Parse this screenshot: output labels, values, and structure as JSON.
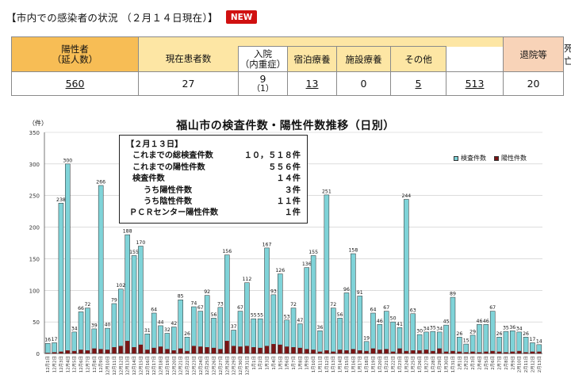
{
  "header": {
    "title": "【市内での感染者の状況 （２月１４日現在）】",
    "badge": "NEW"
  },
  "status_table": {
    "headers": {
      "positive": [
        "陽性者",
        "（延人数）"
      ],
      "current_patients": "現在患者数",
      "hospitalized": [
        "入院",
        "（内重症）"
      ],
      "hotel": "宿泊療養",
      "facility": "施設療養",
      "other": "その他",
      "discharged": "退院等",
      "deaths": "死亡"
    },
    "values": {
      "positive": "560",
      "current_patients": "27",
      "hospitalized": "9",
      "hospitalized_severe": "（1）",
      "hotel": "13",
      "facility": "0",
      "other": "5",
      "discharged": "513",
      "deaths": "20"
    },
    "colors": {
      "positive_header": "#f7bd55",
      "status_header": "#fde6a4",
      "discharged_header": "#f8d3b8",
      "deaths_header": "#d6e0f6"
    }
  },
  "chart_title": "福山市の検査件数・陽性件数推移（日別）",
  "info_box": {
    "heading": "【２月１３日】",
    "rows": [
      {
        "label": "これまでの総検査件数",
        "value": "１０，５１８件",
        "indent": 1
      },
      {
        "label": "これまでの陽性件数",
        "value": "５５６件",
        "indent": 1
      },
      {
        "label": "検査件数",
        "value": "１４件",
        "indent": 1
      },
      {
        "label": "うち陽性件数",
        "value": "３件",
        "indent": 2
      },
      {
        "label": "うち陰性件数",
        "value": "１１件",
        "indent": 2
      },
      {
        "label": "ＰＣＲセンター陽性件数",
        "value": "１件",
        "indent": 0
      }
    ]
  },
  "chart_data": {
    "type": "bar",
    "yunit": "（件）",
    "ylim": [
      0,
      350
    ],
    "yticks": [
      0,
      50,
      100,
      150,
      200,
      250,
      300,
      350
    ],
    "grid": true,
    "legend_placement": "top-right",
    "series": [
      {
        "name": "検査件数",
        "color": "#7fd3d8",
        "values": [
          16,
          17,
          238,
          300,
          34,
          66,
          72,
          39,
          266,
          40,
          79,
          102,
          188,
          155,
          170,
          31,
          64,
          44,
          32,
          42,
          85,
          26,
          74,
          67,
          92,
          56,
          73,
          156,
          37,
          67,
          112,
          55,
          55,
          167,
          93,
          126,
          53,
          72,
          47,
          136,
          155,
          36,
          251,
          72,
          56,
          96,
          158,
          91,
          19,
          64,
          46,
          67,
          50,
          41,
          244,
          63,
          30,
          34,
          35,
          34,
          45,
          89,
          26,
          15,
          29,
          46,
          46,
          67,
          26,
          35,
          36,
          34,
          26,
          17,
          14
        ],
        "labels": [
          16,
          17,
          238,
          300,
          34,
          66,
          72,
          39,
          266,
          40,
          79,
          102,
          188,
          155,
          170,
          31,
          64,
          44,
          32,
          42,
          85,
          26,
          74,
          67,
          92,
          56,
          73,
          156,
          37,
          67,
          112,
          55,
          55,
          167,
          93,
          126,
          53,
          72,
          47,
          136,
          155,
          36,
          251,
          72,
          56,
          96,
          158,
          91,
          19,
          64,
          46,
          67,
          50,
          41,
          244,
          63,
          30,
          34,
          35,
          34,
          45,
          89,
          26,
          15,
          29,
          46,
          46,
          67,
          26,
          35,
          36,
          34,
          26,
          17,
          14
        ]
      },
      {
        "name": "陽性件数",
        "color": "#7a1414",
        "values": [
          1,
          2,
          3,
          5,
          4,
          6,
          5,
          8,
          7,
          6,
          10,
          12,
          20,
          10,
          14,
          6,
          9,
          11,
          7,
          5,
          8,
          4,
          12,
          11,
          10,
          9,
          7,
          20,
          12,
          11,
          12,
          10,
          9,
          12,
          15,
          14,
          11,
          10,
          9,
          7,
          6,
          3,
          5,
          3,
          6,
          5,
          7,
          5,
          4,
          8,
          6,
          7,
          3,
          8,
          4,
          5,
          5,
          6,
          4,
          8,
          3,
          4,
          3,
          2,
          3,
          2,
          3,
          4,
          3,
          2,
          3,
          4,
          2,
          3,
          3
        ]
      }
    ],
    "categories": [
      "12月1日",
      "12月2日",
      "12月3日",
      "12月4日",
      "12月5日",
      "12月6日",
      "12月7日",
      "12月8日",
      "12月9日",
      "12月10日",
      "12月11日",
      "12月12日",
      "12月13日",
      "12月14日",
      "12月15日",
      "12月16日",
      "12月17日",
      "12月18日",
      "12月19日",
      "12月20日",
      "12月21日",
      "12月22日",
      "12月23日",
      "12月24日",
      "12月25日",
      "12月26日",
      "12月27日",
      "12月28日",
      "12月29日",
      "12月30日",
      "12月31日",
      "1月1日",
      "1月2日",
      "1月3日",
      "1月4日",
      "1月5日",
      "1月6日",
      "1月7日",
      "1月8日",
      "1月9日",
      "1月10日",
      "1月11日",
      "1月12日",
      "1月13日",
      "1月14日",
      "1月15日",
      "1月16日",
      "1月17日",
      "1月18日",
      "1月19日",
      "1月20日",
      "1月21日",
      "1月22日",
      "1月23日",
      "1月24日",
      "1月25日",
      "1月26日",
      "1月27日",
      "1月28日",
      "1月29日",
      "1月30日",
      "1月31日",
      "2月1日",
      "2月2日",
      "2月3日",
      "2月4日",
      "2月5日",
      "2月6日",
      "2月7日",
      "2月8日",
      "2月9日",
      "2月10日",
      "2月11日",
      "2月12日",
      "2月13日"
    ]
  }
}
